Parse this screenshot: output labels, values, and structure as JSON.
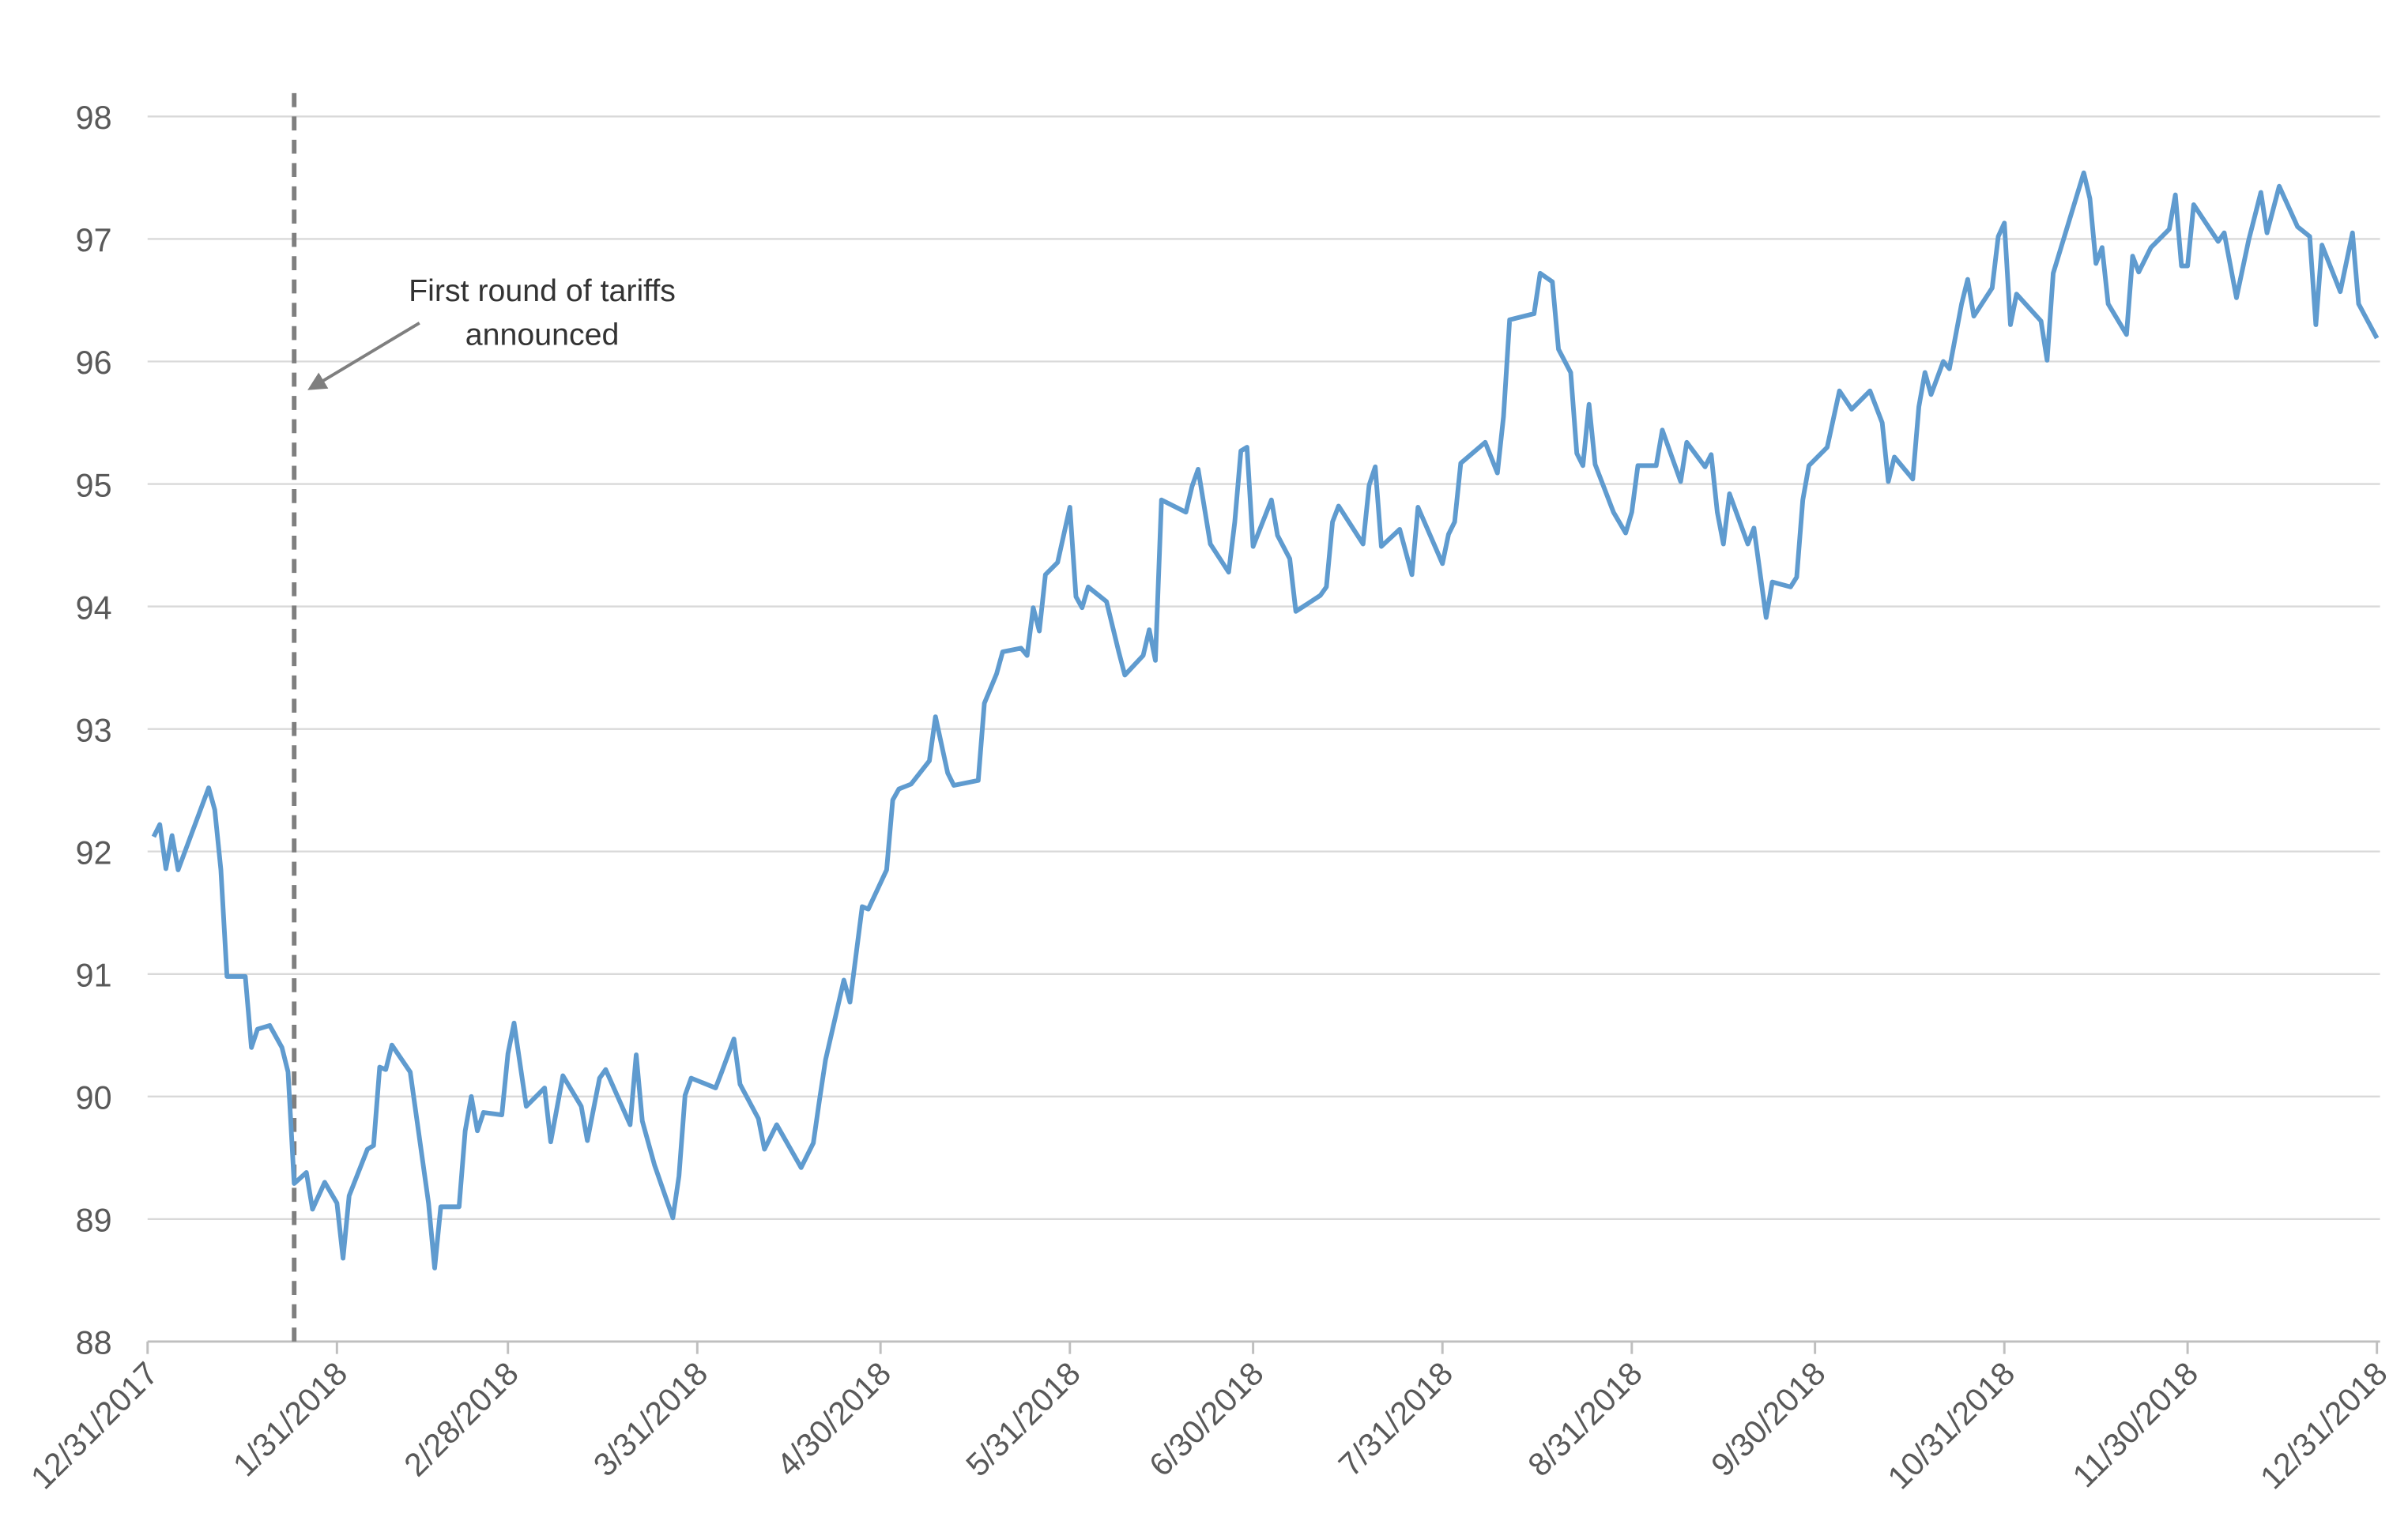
{
  "chart_data": {
    "type": "line",
    "annotation": [
      "First round of tariffs",
      "announced"
    ],
    "event_x": "1/24/2018",
    "color": "#5f9bcf",
    "xlim": [
      "12/31/2017",
      "12/31/2018"
    ],
    "xticks": [
      "12/31/2017",
      "1/31/2018",
      "2/28/2018",
      "3/31/2018",
      "4/30/2018",
      "5/31/2018",
      "6/30/2018",
      "7/31/2018",
      "8/31/2018",
      "9/30/2018",
      "10/31/2018",
      "11/30/2018",
      "12/31/2018"
    ],
    "ylim": [
      88,
      98
    ],
    "yticks": [
      88,
      89,
      90,
      91,
      92,
      93,
      94,
      95,
      96,
      97,
      98
    ],
    "grid": true,
    "x": [
      "1/1/2018",
      "1/2/2018",
      "1/3/2018",
      "1/4/2018",
      "1/5/2018",
      "1/10/2018",
      "1/11/2018",
      "1/12/2018",
      "1/13/2018",
      "1/16/2018",
      "1/17/2018",
      "1/18/2018",
      "1/20/2018",
      "1/22/2018",
      "1/23/2018",
      "1/24/2018",
      "1/26/2018",
      "1/27/2018",
      "1/29/2018",
      "1/31/2018",
      "2/1/2018",
      "2/2/2018",
      "2/5/2018",
      "2/6/2018",
      "2/7/2018",
      "2/8/2018",
      "2/9/2018",
      "2/12/2018",
      "2/15/2018",
      "2/16/2018",
      "2/17/2018",
      "2/20/2018",
      "2/21/2018",
      "2/22/2018",
      "2/23/2018",
      "2/24/2018",
      "2/27/2018",
      "2/28/2018",
      "3/1/2018",
      "3/3/2018",
      "3/6/2018",
      "3/7/2018",
      "3/9/2018",
      "3/12/2018",
      "3/13/2018",
      "3/15/2018",
      "3/16/2018",
      "3/20/2018",
      "3/21/2018",
      "3/22/2018",
      "3/24/2018",
      "3/27/2018",
      "3/28/2018",
      "3/29/2018",
      "3/30/2018",
      "4/3/2018",
      "4/4/2018",
      "4/6/2018",
      "4/7/2018",
      "4/10/2018",
      "4/11/2018",
      "4/13/2018",
      "4/17/2018",
      "4/19/2018",
      "4/20/2018",
      "4/21/2018",
      "4/24/2018",
      "4/25/2018",
      "4/27/2018",
      "4/28/2018",
      "5/1/2018",
      "5/2/2018",
      "5/3/2018",
      "5/5/2018",
      "5/8/2018",
      "5/9/2018",
      "5/11/2018",
      "5/12/2018",
      "5/16/2018",
      "5/17/2018",
      "5/19/2018",
      "5/20/2018",
      "5/23/2018",
      "5/24/2018",
      "5/25/2018",
      "5/26/2018",
      "5/27/2018",
      "5/29/2018",
      "5/31/2018",
      "6/1/2018",
      "6/2/2018",
      "6/3/2018",
      "6/6/2018",
      "6/8/2018",
      "6/9/2018",
      "6/12/2018",
      "6/13/2018",
      "6/14/2018",
      "6/15/2018",
      "6/19/2018",
      "6/20/2018",
      "6/21/2018",
      "6/23/2018",
      "6/26/2018",
      "6/27/2018",
      "6/28/2018",
      "6/29/2018",
      "6/30/2018",
      "7/3/2018",
      "7/4/2018",
      "7/6/2018",
      "7/7/2018",
      "7/11/2018",
      "7/12/2018",
      "7/13/2018",
      "7/14/2018",
      "7/18/2018",
      "7/19/2018",
      "7/20/2018",
      "7/21/2018",
      "7/24/2018",
      "7/26/2018",
      "7/27/2018",
      "7/31/2018",
      "8/1/2018",
      "8/2/2018",
      "8/3/2018",
      "8/7/2018",
      "8/9/2018",
      "8/10/2018",
      "8/11/2018",
      "8/15/2018",
      "8/16/2018",
      "8/18/2018",
      "8/19/2018",
      "8/21/2018",
      "8/22/2018",
      "8/23/2018",
      "8/24/2018",
      "8/25/2018",
      "8/28/2018",
      "8/30/2018",
      "8/31/2018",
      "9/1/2018",
      "9/4/2018",
      "9/5/2018",
      "9/8/2018",
      "9/9/2018",
      "9/12/2018",
      "9/13/2018",
      "9/14/2018",
      "9/15/2018",
      "9/16/2018",
      "9/19/2018",
      "9/20/2018",
      "9/22/2018",
      "9/23/2018",
      "9/26/2018",
      "9/27/2018",
      "9/28/2018",
      "9/29/2018",
      "10/2/2018",
      "10/4/2018",
      "10/6/2018",
      "10/9/2018",
      "10/11/2018",
      "10/12/2018",
      "10/13/2018",
      "10/16/2018",
      "10/17/2018",
      "10/18/2018",
      "10/19/2018",
      "10/21/2018",
      "10/22/2018",
      "10/24/2018",
      "10/25/2018",
      "10/26/2018",
      "10/29/2018",
      "10/30/2018",
      "10/31/2018",
      "11/1/2018",
      "11/2/2018",
      "11/6/2018",
      "11/7/2018",
      "11/8/2018",
      "11/13/2018",
      "11/14/2018",
      "11/15/2018",
      "11/16/2018",
      "11/17/2018",
      "11/20/2018",
      "11/21/2018",
      "11/22/2018",
      "11/24/2018",
      "11/27/2018",
      "11/28/2018",
      "11/29/2018",
      "11/30/2018",
      "12/1/2018",
      "12/5/2018",
      "12/6/2018",
      "12/8/2018",
      "12/10/2018",
      "12/12/2018",
      "12/13/2018",
      "12/15/2018",
      "12/18/2018",
      "12/20/2018",
      "12/21/2018",
      "12/22/2018",
      "12/25/2018",
      "12/27/2018",
      "12/28/2018",
      "12/31/2018"
    ],
    "values": [
      92.12,
      92.22,
      91.86,
      92.13,
      91.85,
      92.52,
      92.34,
      91.85,
      90.98,
      90.98,
      90.4,
      90.55,
      90.58,
      90.4,
      90.2,
      89.29,
      89.38,
      89.08,
      89.3,
      89.13,
      88.68,
      89.19,
      89.57,
      89.6,
      90.24,
      90.22,
      90.42,
      90.2,
      89.13,
      88.6,
      89.1,
      89.1,
      89.72,
      90.0,
      89.72,
      89.87,
      89.85,
      90.35,
      90.6,
      89.92,
      90.07,
      89.63,
      90.17,
      89.92,
      89.64,
      90.15,
      90.22,
      89.77,
      90.34,
      89.8,
      89.44,
      89.01,
      89.35,
      90.01,
      90.15,
      90.07,
      90.2,
      90.47,
      90.1,
      89.82,
      89.57,
      89.77,
      89.42,
      89.62,
      89.97,
      90.3,
      90.95,
      90.77,
      91.55,
      91.53,
      91.85,
      92.42,
      92.51,
      92.55,
      92.74,
      93.1,
      92.64,
      92.54,
      92.58,
      93.21,
      93.45,
      93.63,
      93.66,
      93.6,
      93.99,
      93.8,
      94.26,
      94.36,
      94.81,
      94.08,
      93.99,
      94.16,
      94.04,
      93.63,
      93.44,
      93.6,
      93.81,
      93.56,
      94.87,
      94.77,
      94.98,
      95.12,
      94.51,
      94.28,
      94.69,
      95.27,
      95.3,
      94.49,
      94.87,
      94.58,
      94.39,
      93.96,
      94.09,
      94.16,
      94.69,
      94.82,
      94.51,
      94.99,
      95.14,
      94.49,
      94.63,
      94.26,
      94.81,
      94.35,
      94.59,
      94.69,
      95.17,
      95.34,
      95.09,
      95.55,
      96.34,
      96.39,
      96.72,
      96.65,
      96.1,
      95.91,
      95.25,
      95.15,
      95.65,
      95.16,
      94.77,
      94.6,
      94.77,
      95.15,
      95.15,
      95.44,
      95.02,
      95.34,
      95.14,
      95.24,
      94.77,
      94.51,
      94.92,
      94.51,
      94.64,
      93.91,
      94.2,
      94.16,
      94.24,
      94.87,
      95.15,
      95.3,
      95.76,
      95.61,
      95.76,
      95.5,
      95.02,
      95.22,
      95.04,
      95.63,
      95.91,
      95.73,
      96.0,
      95.94,
      96.47,
      96.67,
      96.37,
      96.6,
      97.02,
      97.13,
      96.3,
      96.55,
      96.33,
      96.01,
      96.72,
      97.54,
      97.33,
      96.8,
      96.93,
      96.47,
      96.22,
      96.86,
      96.73,
      96.93,
      97.08,
      97.36,
      96.78,
      96.78,
      97.28,
      96.98,
      97.05,
      96.52,
      96.99,
      97.38,
      97.05,
      97.43,
      97.1,
      97.02,
      96.3,
      96.95,
      96.57,
      97.05,
      96.47,
      96.19
    ]
  }
}
